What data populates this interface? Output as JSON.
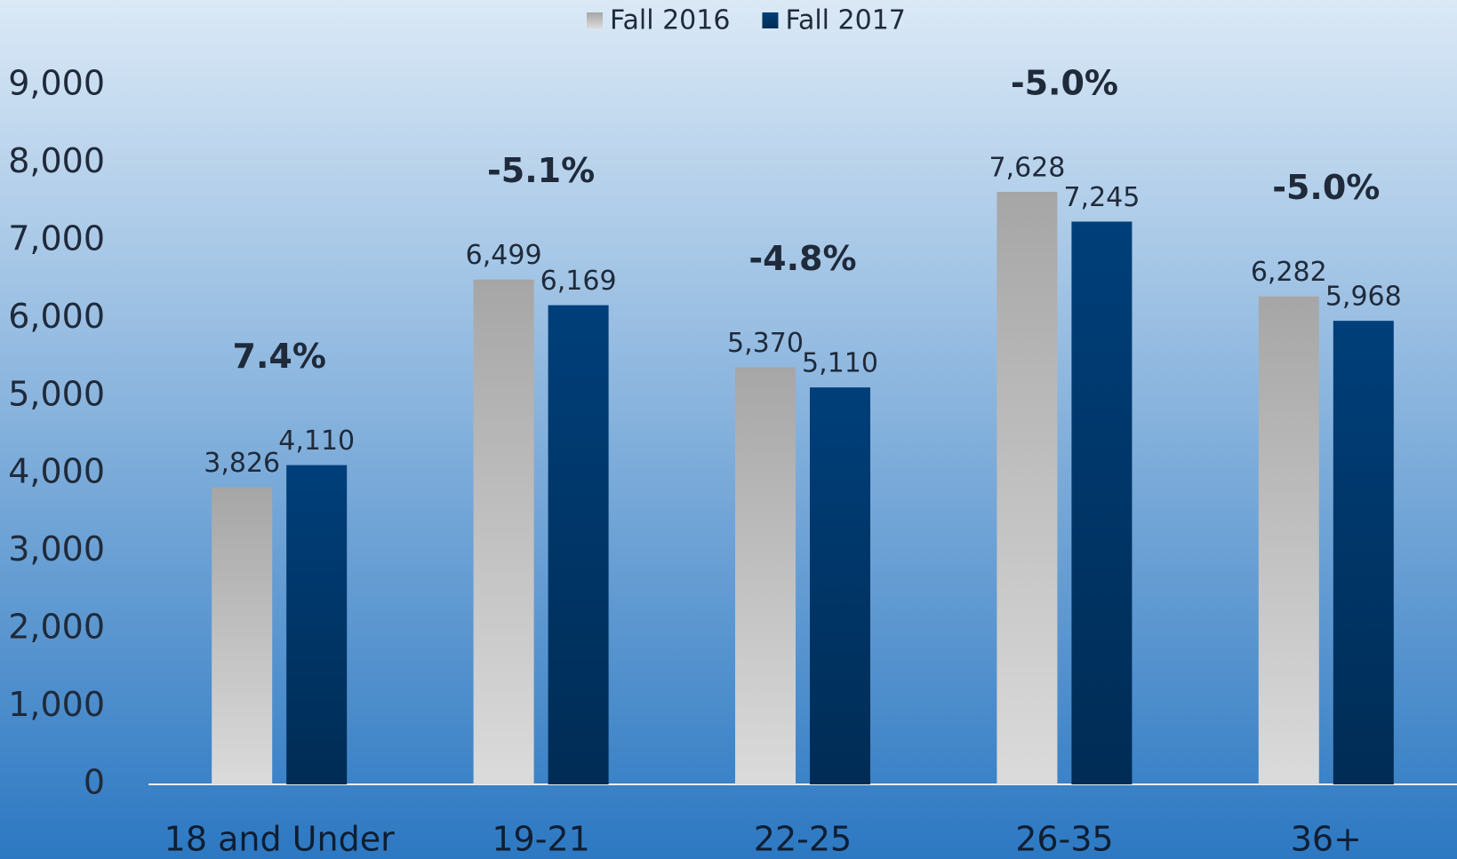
{
  "chart_data": {
    "type": "bar",
    "categories": [
      "18 and Under",
      "19-21",
      "22-25",
      "26-35",
      "36+"
    ],
    "series": [
      {
        "name": "Fall 2016",
        "color": "#a6a6a6",
        "values": [
          3826,
          6499,
          5370,
          7628,
          6282
        ],
        "value_labels": [
          "3,826",
          "6,499",
          "5,370",
          "7,628",
          "6,282"
        ]
      },
      {
        "name": "Fall 2017",
        "color": "#003f7a",
        "values": [
          4110,
          6169,
          5110,
          7245,
          5968
        ],
        "value_labels": [
          "4,110",
          "6,169",
          "5,110",
          "7,245",
          "5,968"
        ]
      }
    ],
    "change_labels": [
      "7.4%",
      "-5.1%",
      "-4.8%",
      "-5.0%",
      "-5.0%"
    ],
    "ylim": [
      0,
      9000
    ],
    "yticks": [
      0,
      {
        "value": 1000,
        "label": "1,000"
      },
      {
        "value": 2000,
        "label": "2,000"
      },
      {
        "value": 3000,
        "label": "3,000"
      },
      {
        "value": 4000,
        "label": "4,000"
      },
      {
        "value": 5000,
        "label": "5,000"
      },
      {
        "value": 6000,
        "label": "6,000"
      },
      {
        "value": 7000,
        "label": "7,000"
      },
      {
        "value": 8000,
        "label": "8,000"
      },
      {
        "value": 9000,
        "label": "9,000"
      }
    ],
    "legend": "top"
  }
}
